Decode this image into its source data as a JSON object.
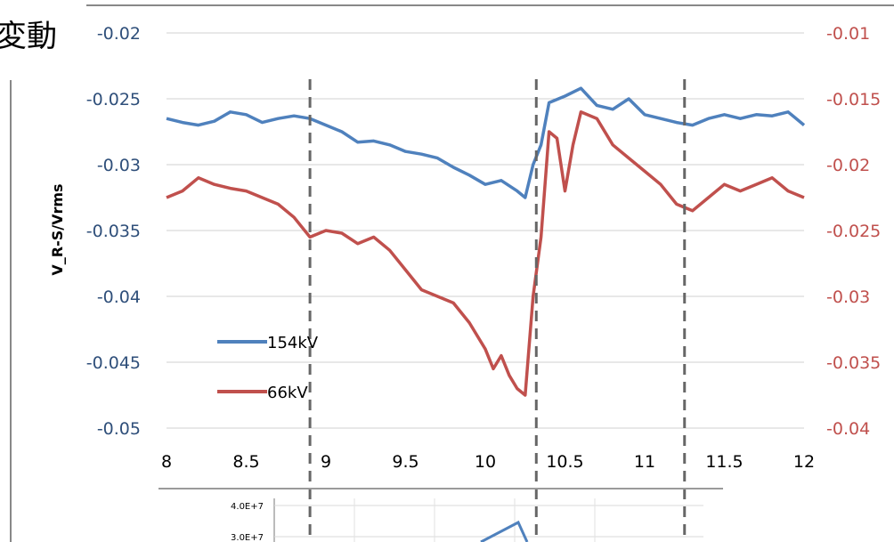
{
  "heading_fragment": "変動",
  "chart_data": {
    "type": "line",
    "title": "",
    "xlabel": "",
    "ylabel": "V_R-S/Vrms",
    "xlim": [
      8,
      12
    ],
    "ylim_left": [
      -0.05,
      -0.02
    ],
    "ylim_right": [
      -0.04,
      -0.01
    ],
    "x_ticks": [
      "8",
      "8.5",
      "9",
      "9.5",
      "10",
      "10.5",
      "11",
      "11.5",
      "12"
    ],
    "y_ticks_left": [
      "-0.02",
      "-0.025",
      "-0.03",
      "-0.035",
      "-0.04",
      "-0.045",
      "-0.05"
    ],
    "y_ticks_right": [
      "-0.01",
      "-0.015",
      "-0.02",
      "-0.025",
      "-0.03",
      "-0.035",
      "-0.04"
    ],
    "vertical_markers": [
      8.9,
      10.32,
      11.25
    ],
    "legend_position": "lower-left",
    "series": [
      {
        "name": "154kV",
        "axis": "left",
        "color": "#4f81bd",
        "x": [
          8.0,
          8.1,
          8.2,
          8.3,
          8.4,
          8.5,
          8.6,
          8.7,
          8.8,
          8.9,
          9.0,
          9.1,
          9.2,
          9.3,
          9.4,
          9.5,
          9.6,
          9.7,
          9.8,
          9.9,
          10.0,
          10.1,
          10.2,
          10.25,
          10.3,
          10.35,
          10.4,
          10.5,
          10.6,
          10.7,
          10.8,
          10.9,
          11.0,
          11.1,
          11.2,
          11.3,
          11.4,
          11.5,
          11.6,
          11.7,
          11.8,
          11.9,
          12.0
        ],
        "values": [
          -0.0265,
          -0.0268,
          -0.027,
          -0.0267,
          -0.026,
          -0.0262,
          -0.0268,
          -0.0265,
          -0.0263,
          -0.0265,
          -0.027,
          -0.0275,
          -0.0283,
          -0.0282,
          -0.0285,
          -0.029,
          -0.0292,
          -0.0295,
          -0.0302,
          -0.0308,
          -0.0315,
          -0.0312,
          -0.032,
          -0.0325,
          -0.03,
          -0.0285,
          -0.0253,
          -0.0248,
          -0.0242,
          -0.0255,
          -0.0258,
          -0.025,
          -0.0262,
          -0.0265,
          -0.0268,
          -0.027,
          -0.0265,
          -0.0262,
          -0.0265,
          -0.0262,
          -0.0263,
          -0.026,
          -0.027
        ]
      },
      {
        "name": "66kV",
        "axis": "right",
        "color": "#c0504d",
        "x": [
          8.0,
          8.1,
          8.2,
          8.3,
          8.4,
          8.5,
          8.6,
          8.7,
          8.8,
          8.9,
          9.0,
          9.1,
          9.2,
          9.3,
          9.4,
          9.5,
          9.6,
          9.7,
          9.8,
          9.9,
          10.0,
          10.05,
          10.1,
          10.15,
          10.2,
          10.25,
          10.3,
          10.35,
          10.4,
          10.45,
          10.5,
          10.55,
          10.6,
          10.7,
          10.8,
          10.9,
          11.0,
          11.1,
          11.2,
          11.3,
          11.4,
          11.5,
          11.6,
          11.7,
          11.8,
          11.9,
          12.0
        ],
        "values": [
          -0.0225,
          -0.022,
          -0.021,
          -0.0215,
          -0.0218,
          -0.022,
          -0.0225,
          -0.023,
          -0.024,
          -0.0255,
          -0.025,
          -0.0252,
          -0.026,
          -0.0255,
          -0.0265,
          -0.028,
          -0.0295,
          -0.03,
          -0.0305,
          -0.032,
          -0.034,
          -0.0355,
          -0.0345,
          -0.036,
          -0.037,
          -0.0375,
          -0.03,
          -0.0255,
          -0.0175,
          -0.018,
          -0.022,
          -0.0185,
          -0.016,
          -0.0165,
          -0.0185,
          -0.0195,
          -0.0205,
          -0.0215,
          -0.023,
          -0.0235,
          -0.0225,
          -0.0215,
          -0.022,
          -0.0215,
          -0.021,
          -0.022,
          -0.0225
        ]
      }
    ],
    "inset": {
      "y_ticks": [
        "4.0E+7",
        "3.0E+7"
      ]
    }
  }
}
